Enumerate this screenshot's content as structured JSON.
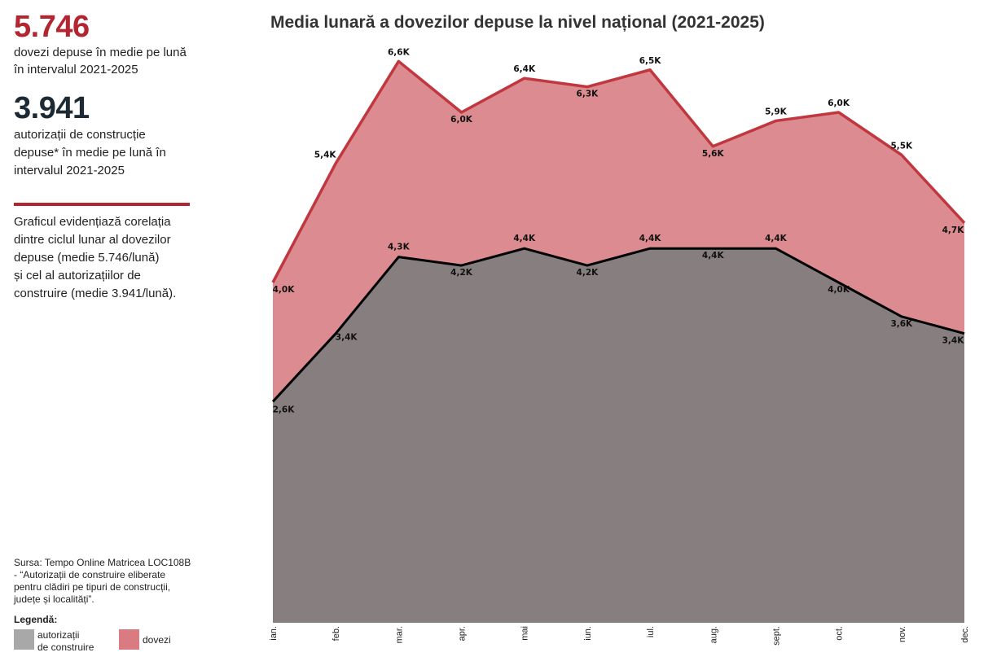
{
  "sidebar": {
    "stat1_value": "5.746",
    "stat1_desc_line1": "dovezi depuse în medie pe lună",
    "stat1_desc_line2": "în intervalul 2021-2025",
    "stat2_value": "3.941",
    "stat2_desc_line1": "autorizații de construcție",
    "stat2_desc_line2": "depuse* în medie pe lună în",
    "stat2_desc_line3": "intervalul 2021-2025",
    "desc_lines": [
      "Graficul evidențiază corelația",
      "dintre ciclul lunar al dovezilor",
      "depuse (medie 5.746/lună)",
      "și cel al autorizațiilor de",
      "construire (medie 3.941/lună)."
    ],
    "source_lines": [
      "Sursa: Tempo Online Matricea LOC108B",
      "- “Autorizații de construire eliberate",
      "pentru clădiri pe tipuri de construcții,",
      "județe și localități”."
    ],
    "legend_title": "Legendă:",
    "legend": [
      {
        "label_line1": "autorizații",
        "label_line2": "de construire",
        "color": "#a8a8a8"
      },
      {
        "label_line1": "dovezi",
        "label_line2": "",
        "color": "#d97b80"
      }
    ]
  },
  "chart_data": {
    "type": "area",
    "title": "Media lunară a dovezilor depuse la nivel național (2021-2025)",
    "categories": [
      "ian.",
      "feb.",
      "mar.",
      "apr.",
      "mai",
      "iun.",
      "iul.",
      "aug.",
      "sept.",
      "oct.",
      "nov.",
      "dec."
    ],
    "series": [
      {
        "name": "dovezi",
        "values": [
          4.0,
          5.4,
          6.6,
          6.0,
          6.4,
          6.3,
          6.5,
          5.6,
          5.9,
          6.0,
          5.5,
          4.7
        ],
        "labels": [
          "4,0K",
          "5,4K",
          "6,6K",
          "6,0K",
          "6,4K",
          "6,3K",
          "6,5K",
          "5,6K",
          "5,9K",
          "6,0K",
          "5,5K",
          "4,7K"
        ],
        "fill": "#dc8c91",
        "stroke": "#c0373f"
      },
      {
        "name": "autorizații de construire",
        "values": [
          2.6,
          3.4,
          4.3,
          4.2,
          4.4,
          4.2,
          4.4,
          4.4,
          4.4,
          4.0,
          3.6,
          3.4
        ],
        "labels": [
          "2,6K",
          "3,4K",
          "4,3K",
          "4,2K",
          "4,4K",
          "4,2K",
          "4,4K",
          "4,4K",
          "4,4K",
          "4,0K",
          "3,6K",
          "3,4K"
        ],
        "fill": "#877e7f",
        "stroke": "#000000"
      }
    ],
    "ylim": [
      0,
      7.0
    ],
    "grid": false
  }
}
